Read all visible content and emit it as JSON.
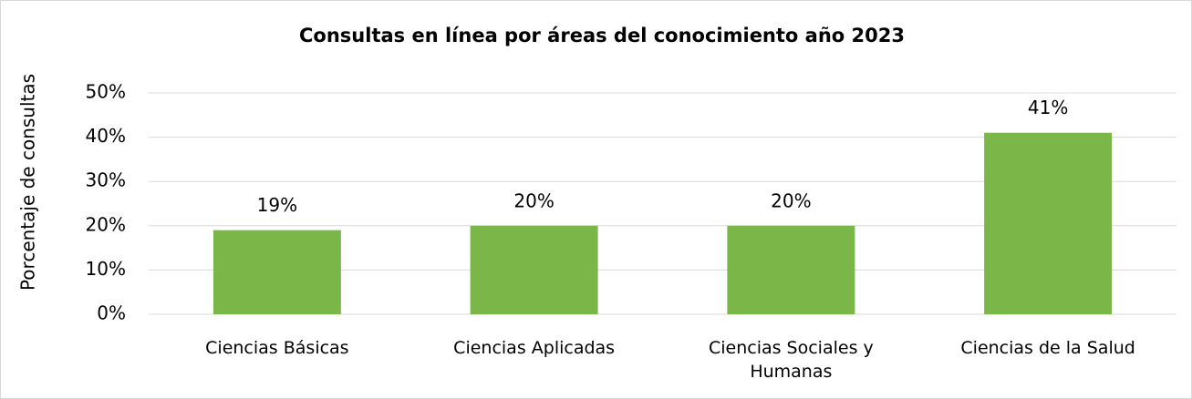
{
  "chart_data": {
    "type": "bar",
    "title": "Consultas en línea por áreas del conocimiento año 2023",
    "y_label": "Porcentaje de consultas",
    "categories": [
      "Ciencias Básicas",
      "Ciencias Aplicadas",
      "Ciencias Sociales y Humanas",
      "Ciencias de la Salud"
    ],
    "values": [
      19,
      20,
      20,
      41
    ],
    "value_labels": [
      "19%",
      "20%",
      "20%",
      "41%"
    ],
    "color": "#7ab648",
    "ylim": [
      0,
      50
    ],
    "yticks": [
      {
        "value": 0,
        "label": "0%"
      },
      {
        "value": 10,
        "label": "10%"
      },
      {
        "value": 20,
        "label": "20%"
      },
      {
        "value": 30,
        "label": "30%"
      },
      {
        "value": 40,
        "label": "40%"
      },
      {
        "value": 50,
        "label": "50%"
      }
    ],
    "grid": true
  }
}
